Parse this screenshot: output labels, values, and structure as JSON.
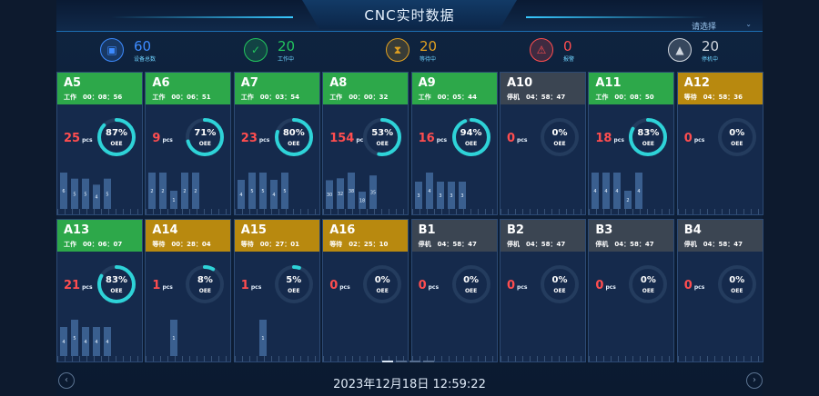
{
  "header": {
    "title": "CNC实时数据",
    "select_label": "请选择"
  },
  "stats": [
    {
      "icon": "cube-icon",
      "value": "60",
      "label": "设备总数",
      "color": "#3d8bff"
    },
    {
      "icon": "check-icon",
      "value": "20",
      "label": "工作中",
      "color": "#22c55e"
    },
    {
      "icon": "hourglass-icon",
      "value": "20",
      "label": "等待中",
      "color": "#e0a020"
    },
    {
      "icon": "alarm-icon",
      "value": "0",
      "label": "报警",
      "color": "#ff4d4f"
    },
    {
      "icon": "warning-icon",
      "value": "20",
      "label": "停机中",
      "color": "#d0d6de"
    }
  ],
  "colors": {
    "working": "#2da84a",
    "waiting": "#b8890f",
    "stopped": "#3b4552",
    "ring": "#2ed3d8",
    "ring_track": "#243c5e",
    "pcs": "#ff4d4f",
    "bar": "#3a5f8f"
  },
  "machines": [
    {
      "name": "A5",
      "state": "工作",
      "status": "working",
      "time": "00：08：56",
      "pcs": "25",
      "oee": "87%",
      "oee_value": 87,
      "bars": [
        6,
        5,
        5,
        4,
        5
      ]
    },
    {
      "name": "A6",
      "state": "工作",
      "status": "working",
      "time": "00：06：51",
      "pcs": "9",
      "oee": "71%",
      "oee_value": 71,
      "bars": [
        2,
        2,
        1,
        2,
        2
      ]
    },
    {
      "name": "A7",
      "state": "工作",
      "status": "working",
      "time": "00：03：54",
      "pcs": "23",
      "oee": "80%",
      "oee_value": 80,
      "bars": [
        4,
        5,
        5,
        4,
        5
      ]
    },
    {
      "name": "A8",
      "state": "工作",
      "status": "working",
      "time": "00：00：32",
      "pcs": "154",
      "oee": "53%",
      "oee_value": 53,
      "bars": [
        30,
        32,
        38,
        18,
        35
      ]
    },
    {
      "name": "A9",
      "state": "工作",
      "status": "working",
      "time": "00：05：44",
      "pcs": "16",
      "oee": "94%",
      "oee_value": 94,
      "bars": [
        3,
        4,
        3,
        3,
        3
      ]
    },
    {
      "name": "A10",
      "state": "停机",
      "status": "stopped",
      "time": "04：58：47",
      "pcs": "0",
      "oee": "0%",
      "oee_value": 0,
      "bars": []
    },
    {
      "name": "A11",
      "state": "工作",
      "status": "working",
      "time": "00：08：50",
      "pcs": "18",
      "oee": "83%",
      "oee_value": 83,
      "bars": [
        4,
        4,
        4,
        2,
        4
      ]
    },
    {
      "name": "A12",
      "state": "等待",
      "status": "waiting",
      "time": "04：58：36",
      "pcs": "0",
      "oee": "0%",
      "oee_value": 0,
      "bars": []
    },
    {
      "name": "A13",
      "state": "工作",
      "status": "working",
      "time": "00：06：07",
      "pcs": "21",
      "oee": "83%",
      "oee_value": 83,
      "bars": [
        4,
        5,
        4,
        4,
        4
      ]
    },
    {
      "name": "A14",
      "state": "等待",
      "status": "waiting",
      "time": "00：28：04",
      "pcs": "1",
      "oee": "8%",
      "oee_value": 8,
      "bars": [
        0,
        0,
        1,
        0,
        0
      ]
    },
    {
      "name": "A15",
      "state": "等待",
      "status": "waiting",
      "time": "00：27：01",
      "pcs": "1",
      "oee": "5%",
      "oee_value": 5,
      "bars": [
        0,
        0,
        1,
        0,
        0
      ]
    },
    {
      "name": "A16",
      "state": "等待",
      "status": "waiting",
      "time": "02：25：10",
      "pcs": "0",
      "oee": "0%",
      "oee_value": 0,
      "bars": []
    },
    {
      "name": "B1",
      "state": "停机",
      "status": "stopped",
      "time": "04：58：47",
      "pcs": "0",
      "oee": "0%",
      "oee_value": 0,
      "bars": []
    },
    {
      "name": "B2",
      "state": "停机",
      "status": "stopped",
      "time": "04：58：47",
      "pcs": "0",
      "oee": "0%",
      "oee_value": 0,
      "bars": []
    },
    {
      "name": "B3",
      "state": "停机",
      "status": "stopped",
      "time": "04：58：47",
      "pcs": "0",
      "oee": "0%",
      "oee_value": 0,
      "bars": []
    },
    {
      "name": "B4",
      "state": "停机",
      "status": "stopped",
      "time": "04：58：47",
      "pcs": "0",
      "oee": "0%",
      "oee_value": 0,
      "bars": []
    }
  ],
  "pcs_unit": "pcs",
  "oee_label": "OEE",
  "pager": {
    "count": 4,
    "active": 0
  },
  "footer": {
    "datetime": "2023年12月18日 12:59:22",
    "prev_icon": "chevron-left-icon",
    "next_icon": "chevron-right-icon"
  }
}
